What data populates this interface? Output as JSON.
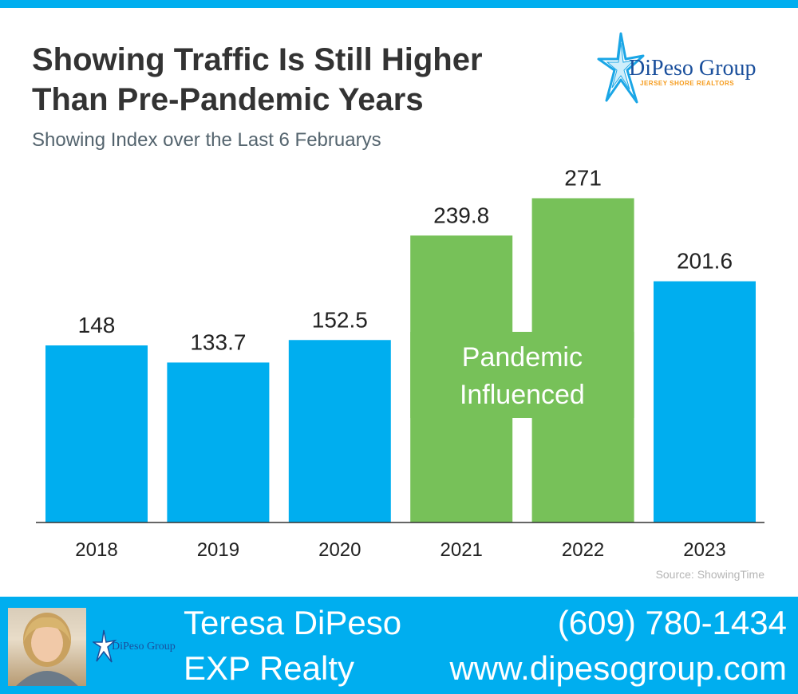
{
  "header": {
    "title": "Showing Traffic Is Still Higher\nThan Pre-Pandemic Years",
    "subtitle": "Showing Index over the Last 6 Februarys",
    "logo_name": "DiPeso Group",
    "logo_tagline": "JERSEY SHORE REALTORS"
  },
  "chart_data": {
    "type": "bar",
    "title": "Showing Traffic Is Still Higher Than Pre-Pandemic Years",
    "subtitle": "Showing Index over the Last 6 Februarys",
    "xlabel": "",
    "ylabel": "",
    "categories": [
      "2018",
      "2019",
      "2020",
      "2021",
      "2022",
      "2023"
    ],
    "values": [
      148,
      133.7,
      152.5,
      239.8,
      271,
      201.6
    ],
    "value_labels": [
      "148",
      "133.7",
      "152.5",
      "239.8",
      "271",
      "201.6"
    ],
    "ylim": [
      0,
      300
    ],
    "grid": false,
    "colors": {
      "normal": "#00aeef",
      "pandemic": "#77c159"
    },
    "highlight": {
      "categories": [
        "2021",
        "2022"
      ],
      "label_line1": "Pandemic",
      "label_line2": "Influenced"
    },
    "source": "Source: ShowingTime"
  },
  "footer": {
    "agent_name": "Teresa DiPeso",
    "company": "EXP Realty",
    "phone": "(609) 780-1434",
    "website": "www.dipesogroup.com",
    "background_color": "#00aeef"
  }
}
